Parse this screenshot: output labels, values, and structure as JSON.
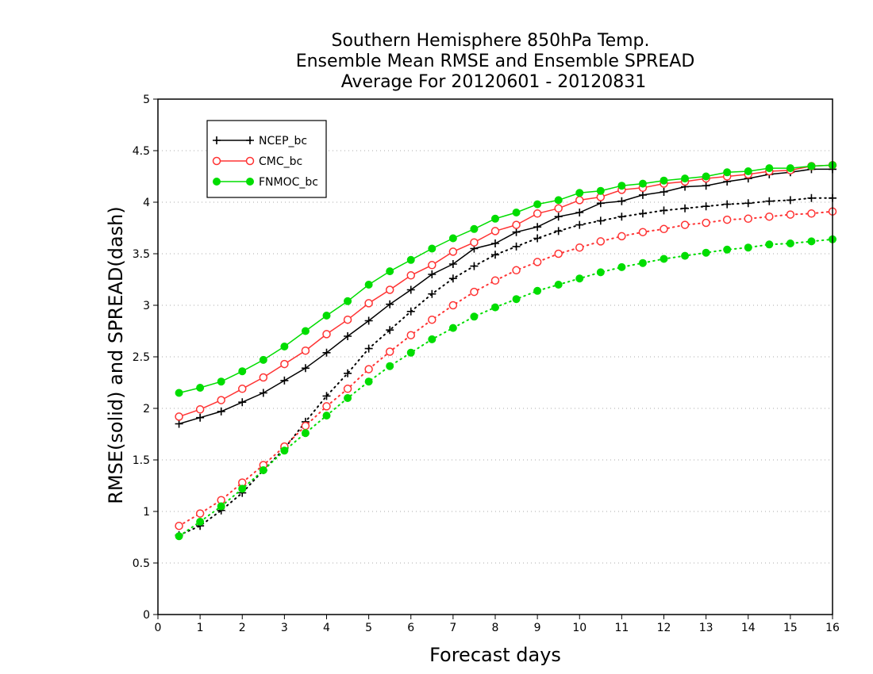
{
  "chart_data": {
    "type": "line",
    "title_lines": [
      "Southern Hemisphere 850hPa Temp.",
      "Ensemble Mean RMSE and Ensemble SPREAD",
      "Average For 20120601 - 20120831"
    ],
    "xlabel": "Forecast days",
    "ylabel": "RMSE(solid) and SPREAD(dash)",
    "xlim": [
      0,
      16
    ],
    "ylim": [
      0,
      5
    ],
    "x_ticks": [
      "0",
      "1",
      "2",
      "3",
      "4",
      "5",
      "6",
      "7",
      "8",
      "9",
      "10",
      "11",
      "12",
      "13",
      "14",
      "15",
      "16"
    ],
    "y_ticks": [
      "0",
      "0.5",
      "1",
      "1.5",
      "2",
      "2.5",
      "3",
      "3.5",
      "4",
      "4.5",
      "5"
    ],
    "grid": "horizontal dotted",
    "legend_position": "top-left",
    "x": [
      0.5,
      1,
      1.5,
      2,
      2.5,
      3,
      3.5,
      4,
      4.5,
      5,
      5.5,
      6,
      6.5,
      7,
      7.5,
      8,
      8.5,
      9,
      9.5,
      10,
      10.5,
      11,
      11.5,
      12,
      12.5,
      13,
      13.5,
      14,
      14.5,
      15,
      15.5,
      16
    ],
    "series": [
      {
        "name": "NCEP_bc",
        "color": "#000000",
        "marker": "plus",
        "rmse": [
          1.85,
          1.91,
          1.97,
          2.06,
          2.15,
          2.27,
          2.39,
          2.54,
          2.7,
          2.85,
          3.01,
          3.15,
          3.3,
          3.4,
          3.55,
          3.6,
          3.71,
          3.76,
          3.86,
          3.9,
          3.99,
          4.01,
          4.07,
          4.1,
          4.15,
          4.16,
          4.2,
          4.23,
          4.27,
          4.29,
          4.32,
          4.32
        ],
        "spread": [
          0.77,
          0.86,
          1.01,
          1.18,
          1.4,
          1.61,
          1.87,
          2.12,
          2.34,
          2.58,
          2.76,
          2.94,
          3.11,
          3.26,
          3.38,
          3.49,
          3.57,
          3.65,
          3.72,
          3.78,
          3.82,
          3.86,
          3.89,
          3.92,
          3.94,
          3.96,
          3.98,
          3.99,
          4.01,
          4.02,
          4.04,
          4.04
        ]
      },
      {
        "name": "CMC_bc",
        "color": "#ff3333",
        "marker": "open-circle",
        "rmse": [
          1.92,
          1.99,
          2.08,
          2.19,
          2.3,
          2.43,
          2.56,
          2.72,
          2.86,
          3.02,
          3.15,
          3.29,
          3.39,
          3.52,
          3.61,
          3.72,
          3.78,
          3.89,
          3.94,
          4.02,
          4.05,
          4.12,
          4.14,
          4.18,
          4.2,
          4.23,
          4.25,
          4.27,
          4.3,
          4.31,
          4.35,
          4.36
        ],
        "spread": [
          0.86,
          0.98,
          1.11,
          1.28,
          1.45,
          1.63,
          1.83,
          2.02,
          2.19,
          2.38,
          2.55,
          2.71,
          2.86,
          3.0,
          3.13,
          3.24,
          3.34,
          3.42,
          3.5,
          3.56,
          3.62,
          3.67,
          3.71,
          3.74,
          3.78,
          3.8,
          3.83,
          3.84,
          3.86,
          3.88,
          3.89,
          3.91
        ]
      },
      {
        "name": "FNMOC_bc",
        "color": "#00dd00",
        "marker": "filled-circle",
        "rmse": [
          2.15,
          2.2,
          2.26,
          2.36,
          2.47,
          2.6,
          2.75,
          2.9,
          3.04,
          3.2,
          3.33,
          3.44,
          3.55,
          3.65,
          3.74,
          3.84,
          3.9,
          3.98,
          4.02,
          4.09,
          4.11,
          4.16,
          4.18,
          4.21,
          4.23,
          4.25,
          4.29,
          4.3,
          4.33,
          4.33,
          4.35,
          4.36
        ],
        "spread": [
          0.76,
          0.9,
          1.05,
          1.22,
          1.4,
          1.59,
          1.76,
          1.93,
          2.1,
          2.26,
          2.41,
          2.54,
          2.67,
          2.78,
          2.89,
          2.98,
          3.06,
          3.14,
          3.2,
          3.26,
          3.32,
          3.37,
          3.41,
          3.45,
          3.48,
          3.51,
          3.54,
          3.56,
          3.59,
          3.6,
          3.62,
          3.64
        ]
      }
    ]
  }
}
